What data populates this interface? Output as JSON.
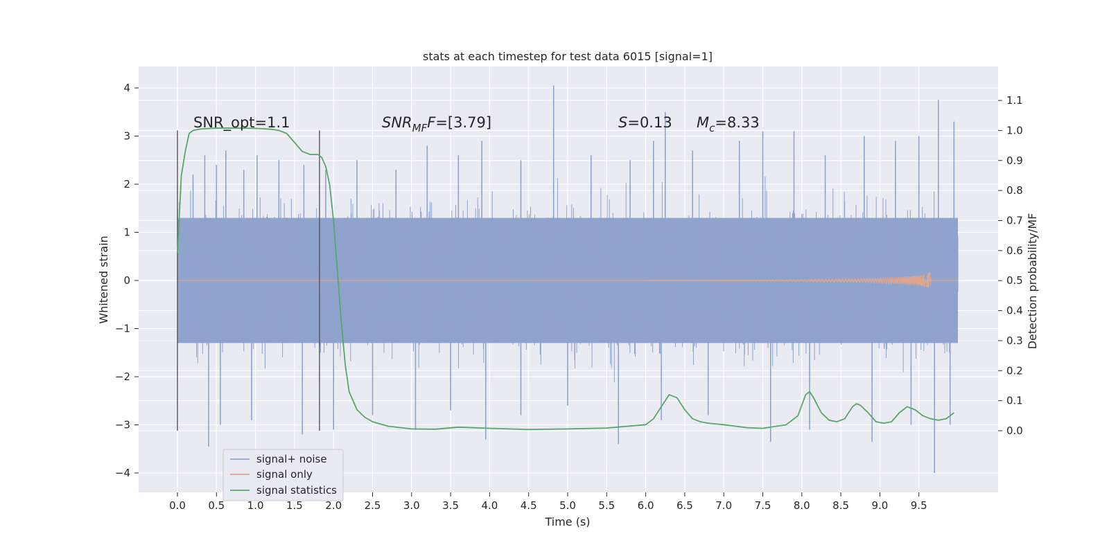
{
  "chart_data": {
    "type": "line",
    "title": "stats at each timestep for test data 6015 [signal=1]",
    "xlabel": "Time (s)",
    "ylabel": "Whitened strain",
    "ylabel_right": "Detection probability/MF",
    "xlim": [
      -0.5,
      10.5
    ],
    "ylim": [
      -4.4,
      4.4
    ],
    "ylim_right": [
      -0.2,
      1.2
    ],
    "x_ticks": [
      "0.0",
      "0.5",
      "1.0",
      "1.5",
      "2.0",
      "2.5",
      "3.0",
      "3.5",
      "4.0",
      "4.5",
      "5.0",
      "5.5",
      "6.0",
      "6.5",
      "7.0",
      "7.5",
      "8.0",
      "8.5",
      "9.0",
      "9.5"
    ],
    "y_ticks_left": [
      "4",
      "3",
      "2",
      "1",
      "0",
      "−1",
      "−2",
      "−3",
      "−4"
    ],
    "y_ticks_right": [
      "1.1",
      "1.0",
      "0.9",
      "0.8",
      "0.7",
      "0.6",
      "0.5",
      "0.4",
      "0.3",
      "0.2",
      "0.1",
      "0.0"
    ],
    "grid": true,
    "legend_placement": "lower-left",
    "annotations": {
      "snr_opt": "SNR_opt=1.1",
      "snr_mf_base": "SNR",
      "snr_mf_sub": "MF",
      "snr_mf_value": "=[3.79]",
      "s_label": "S",
      "s_value": "=0.13",
      "mc_base": "M",
      "mc_sub": "c",
      "mc_value": "=8.33"
    },
    "vertical_markers_x": [
      0.0,
      1.82
    ],
    "series": [
      {
        "name": "signal+ noise",
        "color": "#8fa3cc",
        "description_kind": "noise band",
        "x_range": [
          0.0,
          10.0
        ],
        "band_abs": 1.3,
        "peaks": [
          [
            0.2,
            2.2
          ],
          [
            0.35,
            2.6
          ],
          [
            0.5,
            2.4
          ],
          [
            0.62,
            2.7
          ],
          [
            0.85,
            2.3
          ],
          [
            1.02,
            2.6
          ],
          [
            1.3,
            2.5
          ],
          [
            1.62,
            2.4
          ],
          [
            1.9,
            2.3
          ],
          [
            2.3,
            2.5
          ],
          [
            2.8,
            2.3
          ],
          [
            3.2,
            2.8
          ],
          [
            3.6,
            2.6
          ],
          [
            3.9,
            2.9
          ],
          [
            4.4,
            2.5
          ],
          [
            4.82,
            4.05
          ],
          [
            5.3,
            2.6
          ],
          [
            5.8,
            2.5
          ],
          [
            6.1,
            2.9
          ],
          [
            6.25,
            3.5
          ],
          [
            6.6,
            2.7
          ],
          [
            7.2,
            2.9
          ],
          [
            7.5,
            3.1
          ],
          [
            7.9,
            3.1
          ],
          [
            8.3,
            2.6
          ],
          [
            8.8,
            3.0
          ],
          [
            9.2,
            2.9
          ],
          [
            9.5,
            3.0
          ],
          [
            9.75,
            3.75
          ],
          [
            9.95,
            3.3
          ]
        ],
        "troughs": [
          [
            0.4,
            -3.45
          ],
          [
            0.55,
            -3.0
          ],
          [
            0.95,
            -2.9
          ],
          [
            1.6,
            -3.2
          ],
          [
            2.0,
            -3.1
          ],
          [
            2.5,
            -2.8
          ],
          [
            3.05,
            -3.1
          ],
          [
            3.5,
            -2.7
          ],
          [
            3.95,
            -3.3
          ],
          [
            4.4,
            -2.8
          ],
          [
            5.0,
            -2.6
          ],
          [
            5.65,
            -3.4
          ],
          [
            6.2,
            -2.9
          ],
          [
            6.8,
            -2.8
          ],
          [
            7.6,
            -3.35
          ],
          [
            8.1,
            -3.1
          ],
          [
            8.9,
            -3.35
          ],
          [
            9.4,
            -3.0
          ],
          [
            9.7,
            -4.0
          ],
          [
            9.9,
            -3.0
          ]
        ]
      },
      {
        "name": "signal only",
        "color": "#e0a68d",
        "x": [
          0.0,
          5.0,
          8.0,
          9.0,
          9.4,
          9.55,
          9.62,
          9.64,
          9.66,
          10.0
        ],
        "amplitude": [
          0.0,
          0.0,
          0.02,
          0.05,
          0.09,
          0.12,
          0.16,
          0.18,
          0.0,
          0.0
        ]
      },
      {
        "name": "signal statistics",
        "color": "#55a868",
        "axis": "right",
        "x": [
          0.0,
          0.05,
          0.1,
          0.15,
          0.2,
          0.3,
          0.5,
          0.8,
          1.0,
          1.2,
          1.3,
          1.4,
          1.5,
          1.6,
          1.7,
          1.8,
          1.85,
          1.9,
          1.95,
          2.0,
          2.05,
          2.1,
          2.15,
          2.2,
          2.3,
          2.4,
          2.5,
          2.7,
          3.0,
          3.3,
          3.6,
          4.0,
          4.5,
          5.0,
          5.5,
          6.0,
          6.1,
          6.2,
          6.3,
          6.4,
          6.5,
          6.6,
          6.7,
          6.8,
          7.0,
          7.3,
          7.5,
          7.8,
          7.95,
          8.05,
          8.1,
          8.15,
          8.25,
          8.35,
          8.45,
          8.55,
          8.65,
          8.7,
          8.75,
          8.85,
          8.95,
          9.05,
          9.15,
          9.25,
          9.35,
          9.45,
          9.55,
          9.65,
          9.75,
          9.85,
          9.95
        ],
        "values": [
          0.59,
          0.85,
          0.93,
          0.99,
          1.0,
          1.005,
          1.008,
          1.008,
          1.007,
          1.004,
          1.0,
          0.99,
          0.96,
          0.93,
          0.92,
          0.92,
          0.91,
          0.88,
          0.82,
          0.7,
          0.53,
          0.36,
          0.22,
          0.13,
          0.07,
          0.045,
          0.03,
          0.015,
          0.006,
          0.005,
          0.012,
          0.008,
          0.004,
          0.006,
          0.009,
          0.02,
          0.04,
          0.08,
          0.12,
          0.11,
          0.07,
          0.04,
          0.03,
          0.025,
          0.02,
          0.01,
          0.008,
          0.02,
          0.05,
          0.12,
          0.13,
          0.11,
          0.06,
          0.035,
          0.03,
          0.04,
          0.08,
          0.09,
          0.085,
          0.06,
          0.03,
          0.025,
          0.03,
          0.06,
          0.08,
          0.07,
          0.05,
          0.04,
          0.035,
          0.04,
          0.06
        ]
      }
    ]
  }
}
